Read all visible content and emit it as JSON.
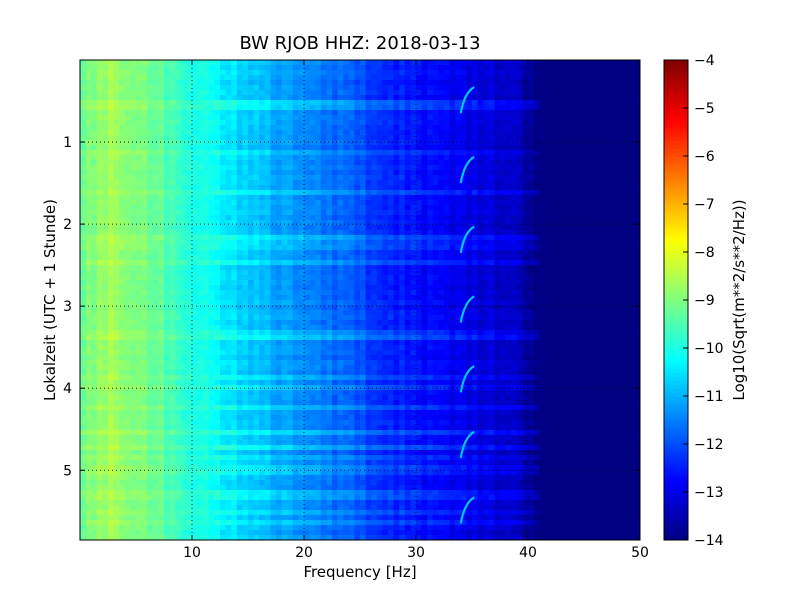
{
  "chart_data": [
    {
      "type": "heatmap",
      "title": "BW RJOB HHZ: 2018-03-13",
      "xlabel": "Frequency [Hz]",
      "ylabel": "Lokalzeit (UTC + 1 Stunde)",
      "xlim": [
        0,
        50
      ],
      "ylim": [
        5.85,
        0
      ],
      "x_ticks": [
        10,
        20,
        30,
        40,
        50
      ],
      "x_tick_labels": [
        "10",
        "20",
        "30",
        "40",
        "50"
      ],
      "y_ticks": [
        1,
        2,
        3,
        4,
        5
      ],
      "y_tick_labels": [
        "1",
        "2",
        "3",
        "4",
        "5"
      ],
      "grid": true,
      "grid_style": "dotted",
      "colormap": "jet",
      "value_range": [
        -14,
        -4
      ],
      "spectral_profile": {
        "frequency_hz": [
          0,
          2,
          4,
          6,
          8,
          10,
          12,
          14,
          16,
          18,
          20,
          22,
          24,
          26,
          28,
          30,
          32,
          34,
          36,
          38,
          39,
          40,
          41,
          42,
          50
        ],
        "log10_amplitude": [
          -9.2,
          -8.7,
          -8.8,
          -9.1,
          -9.5,
          -9.9,
          -10.3,
          -10.6,
          -10.9,
          -11.2,
          -11.5,
          -11.7,
          -11.9,
          -12.2,
          -12.4,
          -12.6,
          -12.8,
          -12.9,
          -13.1,
          -13.3,
          -13.5,
          -13.7,
          -13.9,
          -14,
          -14
        ]
      },
      "tonal_feature": {
        "description": "short upward-chirping line segments",
        "frequency_range_hz": [
          34,
          35.2
        ],
        "occurrences_hours": [
          0.45,
          1.3,
          2.15,
          3.0,
          3.85,
          4.65,
          5.45
        ],
        "log10_amplitude": -10.8
      },
      "noisy_time_bands_hours": [
        0.55,
        1.15,
        1.6,
        2.15,
        2.25,
        2.45,
        3.35,
        3.85,
        4.0,
        4.25,
        4.55,
        4.7,
        4.85,
        5.0,
        5.3,
        5.5,
        5.65
      ]
    },
    {
      "type": "colorbar",
      "label": "Log10(Sqrt(m**2/s**2/Hz))",
      "range": [
        -14,
        -4
      ],
      "ticks": [
        -14,
        -13,
        -12,
        -11,
        -10,
        -9,
        -8,
        -7,
        -6,
        -5,
        -4
      ],
      "tick_labels": [
        "−14",
        "−13",
        "−12",
        "−11",
        "−10",
        "−9",
        "−8",
        "−7",
        "−6",
        "−5",
        "−4"
      ],
      "colormap": "jet"
    }
  ]
}
